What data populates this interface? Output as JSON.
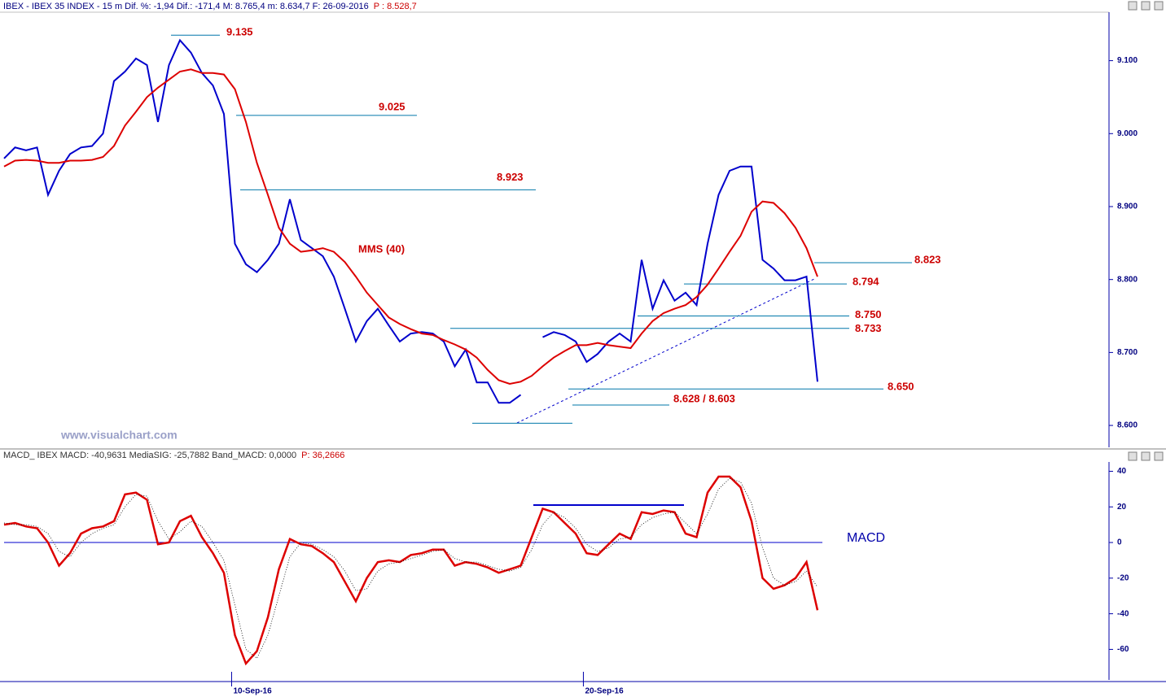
{
  "chart_data": [
    {
      "type": "line",
      "title": "IBEX - IBEX 35 INDEX - 15 m Dif. %: -1,94 Dif.: -171,4 M: 8.765,4 m: 8.634,7 F: 26-09-2016",
      "last_price": "P : 8.528,7",
      "watermark": "www.visualchart.com",
      "xlim": [
        0,
        100
      ],
      "ylim": [
        8570,
        9172
      ],
      "yticks": [
        {
          "value": 8600,
          "label": "8.600"
        },
        {
          "value": 8700,
          "label": "8.700"
        },
        {
          "value": 8800,
          "label": "8.800"
        },
        {
          "value": 8900,
          "label": "8.900"
        },
        {
          "value": 9000,
          "label": "9.000"
        },
        {
          "value": 9100,
          "label": "9.100"
        }
      ],
      "series": [
        {
          "color": "#0000cc",
          "values": [
            8966,
            8981,
            8977,
            8981,
            8916,
            8949,
            8972,
            8981,
            8983,
            9000,
            9072,
            9085,
            9103,
            9094,
            9016,
            9094,
            9128,
            9111,
            9083,
            9066,
            9027,
            8849,
            8821,
            8810,
            8827,
            8849,
            8910,
            8854,
            8843,
            8832,
            8804,
            8760,
            8715,
            8743,
            8760,
            8737,
            8715,
            8726,
            8728,
            8726,
            8715,
            8681,
            8704,
            8659,
            8659,
            8631,
            8631,
            8642,
            null,
            8721,
            8728,
            8724,
            8715,
            8687,
            8698,
            8715,
            8726,
            8715,
            8827,
            8760,
            8799,
            8771,
            8782,
            8765,
            8849,
            8916,
            8949,
            8955,
            8955,
            8827,
            8815,
            8799,
            8799,
            8804,
            8660
          ]
        },
        {
          "name": "MMS (40)",
          "color": "#dd0000",
          "values": [
            8955,
            8963,
            8964,
            8963,
            8960,
            8960,
            8963,
            8963,
            8964,
            8968,
            8983,
            9011,
            9030,
            9050,
            9063,
            9074,
            9085,
            9088,
            9083,
            9083,
            9081,
            9061,
            9016,
            8960,
            8916,
            8871,
            8849,
            8838,
            8840,
            8843,
            8838,
            8824,
            8804,
            8782,
            8765,
            8748,
            8739,
            8732,
            8726,
            8724,
            8717,
            8711,
            8704,
            8693,
            8676,
            8662,
            8657,
            8660,
            8668,
            8681,
            8693,
            8702,
            8710,
            8710,
            8713,
            8710,
            8708,
            8706,
            8726,
            8743,
            8754,
            8760,
            8765,
            8776,
            8793,
            8815,
            8838,
            8860,
            8893,
            8907,
            8905,
            8891,
            8871,
            8843,
            8804
          ]
        }
      ],
      "levels": [
        {
          "label": "9.135",
          "values": [
            9135
          ]
        },
        {
          "label": "9.025",
          "values": [
            9025
          ]
        },
        {
          "label": "8.923",
          "values": [
            8923
          ]
        },
        {
          "label": "8.823",
          "values": [
            8823
          ]
        },
        {
          "label": "8.794",
          "values": [
            8794
          ]
        },
        {
          "label": "8.750",
          "values": [
            8750
          ]
        },
        {
          "label": "8.733",
          "values": [
            8733
          ]
        },
        {
          "label": "8.650",
          "values": [
            8650
          ]
        },
        {
          "label": "8.628 / 8.603",
          "values": [
            8628,
            8603
          ]
        }
      ]
    },
    {
      "type": "line",
      "title": "MACD_ IBEX MACD: -40,9631 MediaSIG: -25,7882 Band_MACD: 0,0000",
      "last_value": "P: 36,2666",
      "xlim": [
        0,
        100
      ],
      "xticks": [
        {
          "value": 20.7,
          "label": "10-Sep-16"
        },
        {
          "value": 52.7,
          "label": "20-Sep-16"
        }
      ],
      "ylim": [
        -76.7,
        46.6
      ],
      "yticks": [
        -60,
        -40,
        -20,
        0,
        20,
        40
      ],
      "reference_line": 0,
      "level_line": 21,
      "series": [
        {
          "name": "MACD",
          "color": "#dd0000",
          "values": [
            10,
            11,
            9,
            8,
            0,
            -13,
            -6,
            5,
            8,
            9,
            12,
            27,
            28,
            24,
            -1,
            0,
            12,
            15,
            3,
            -6,
            -17,
            -52,
            -68,
            -61,
            -42,
            -15,
            2,
            -1,
            -2,
            -6,
            -11,
            -22,
            -33,
            -20,
            -11,
            -10,
            -11,
            -7,
            -6,
            -4,
            -4,
            -13,
            -11,
            -12,
            -14,
            -17,
            -15,
            -13,
            3,
            19,
            17,
            11,
            5,
            -6,
            -7,
            -1,
            5,
            2,
            17,
            16,
            18,
            17,
            5,
            3,
            28,
            37,
            37,
            31,
            12,
            -20,
            -26,
            -24,
            -20,
            -11,
            -38
          ]
        },
        {
          "color": "#000000",
          "values": [
            11,
            10,
            10,
            9,
            5,
            -5,
            -8,
            0,
            5,
            8,
            10,
            20,
            27,
            26,
            12,
            2,
            6,
            12,
            9,
            0,
            -10,
            -35,
            -60,
            -65,
            -52,
            -30,
            -8,
            0,
            -1,
            -4,
            -8,
            -16,
            -27,
            -26,
            -16,
            -12,
            -11,
            -9,
            -7,
            -5,
            -4,
            -9,
            -11,
            -11,
            -13,
            -15,
            -16,
            -14,
            -4,
            10,
            17,
            14,
            8,
            -1,
            -5,
            -3,
            2,
            3,
            10,
            14,
            16,
            17,
            11,
            5,
            16,
            30,
            36,
            34,
            22,
            -3,
            -20,
            -24,
            -22,
            -16,
            -25
          ]
        }
      ]
    }
  ]
}
